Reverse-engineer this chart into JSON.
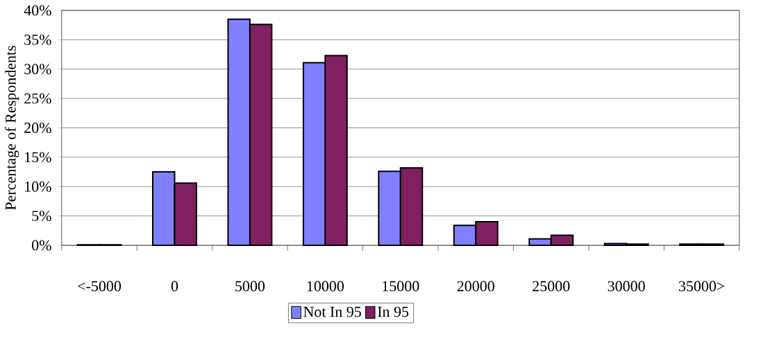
{
  "chart_data": {
    "type": "bar",
    "ylabel": "Percentage of Respondents",
    "categories": [
      "<-5000",
      "0",
      "5000",
      "10000",
      "15000",
      "20000",
      "25000",
      "30000",
      "35000>"
    ],
    "series": [
      {
        "name": "Not In 95",
        "color": "#8080ff",
        "values": [
          0.1,
          12.5,
          38.5,
          31.1,
          12.6,
          3.4,
          1.1,
          0.3,
          0.2
        ]
      },
      {
        "name": "In 95",
        "color": "#802060",
        "values": [
          0.1,
          10.6,
          37.6,
          32.3,
          13.2,
          4.0,
          1.7,
          0.2,
          0.2
        ]
      }
    ],
    "ylim": [
      0,
      40
    ],
    "yticks": [
      {
        "value": 0,
        "label": "0%"
      },
      {
        "value": 5,
        "label": "5%"
      },
      {
        "value": 10,
        "label": "10%"
      },
      {
        "value": 15,
        "label": "15%"
      },
      {
        "value": 20,
        "label": "20%"
      },
      {
        "value": 25,
        "label": "25%"
      },
      {
        "value": 30,
        "label": "30%"
      },
      {
        "value": 35,
        "label": "35%"
      },
      {
        "value": 40,
        "label": "40%"
      }
    ],
    "grid": "y",
    "legend": "bottom"
  }
}
